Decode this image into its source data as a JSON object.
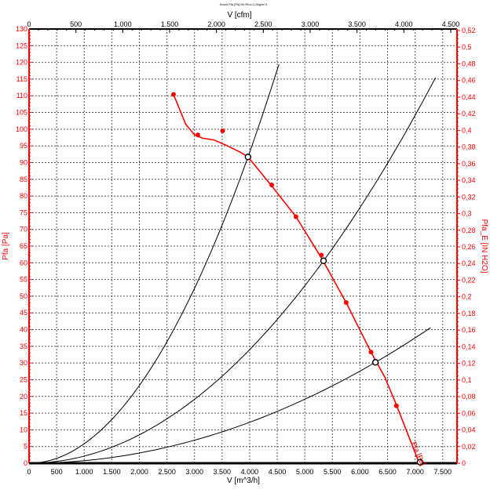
{
  "chart_data": {
    "type": "line",
    "title": "Druck Pfa [Pa] für Rho=1.2kg/m^3",
    "xlabel": "V [m^3/h]",
    "x2label": "V [cfm]",
    "ylabel": "Pfa [Pa]",
    "y2label": "Pfa_E [IN H2O]",
    "xlim": [
      0,
      7760
    ],
    "ylim": [
      0,
      130
    ],
    "grid": true,
    "x_ticks": [
      0,
      500,
      1000,
      1500,
      2000,
      2500,
      3000,
      3500,
      4000,
      4500,
      5000,
      5500,
      6000,
      6500,
      7000,
      7500
    ],
    "x_tick_labels": [
      "0",
      "500",
      "1.000",
      "1.500",
      "2.000",
      "2.500",
      "3.000",
      "3.500",
      "4.000",
      "4.500",
      "5.000",
      "5.500",
      "6.000",
      "6.500",
      "7.000",
      "7.500"
    ],
    "x2_ticks": [
      0,
      500,
      1000,
      1500,
      2000,
      2500,
      3000,
      3500,
      4000,
      4500
    ],
    "x2_tick_labels": [
      "0",
      "500",
      "1.000",
      "1.500",
      "2.000",
      "2.500",
      "3.000",
      "3.500",
      "4.000",
      "4.500"
    ],
    "y_ticks": [
      0,
      5,
      10,
      15,
      20,
      25,
      30,
      35,
      40,
      45,
      50,
      55,
      60,
      65,
      70,
      75,
      80,
      85,
      90,
      95,
      100,
      105,
      110,
      115,
      120,
      125,
      130
    ],
    "y2_ticks": [
      0,
      0.02,
      0.04,
      0.06,
      0.08,
      0.1,
      0.12,
      0.14,
      0.16,
      0.18,
      0.2,
      0.22,
      0.24,
      0.26,
      0.28,
      0.3,
      0.32,
      0.34,
      0.36,
      0.38,
      0.4,
      0.42,
      0.44,
      0.46,
      0.48,
      0.5,
      0.52
    ],
    "y2_tick_labels": [
      "0",
      "0,02",
      "0,04",
      "0,06",
      "0,08",
      "0,1",
      "0,12",
      "0,14",
      "0,16",
      "0,18",
      "0,2",
      "0,22",
      "0,24",
      "0,26",
      "0,28",
      "0,3",
      "0,32",
      "0,34",
      "0,36",
      "0,38",
      "0,4",
      "0,42",
      "0,44",
      "0,46",
      "0,48",
      "0,5",
      "0,52"
    ],
    "fan_curve": {
      "name": "Pfa [Pa]",
      "color": "#ff0000",
      "measured_points": [
        [
          2620,
          110.4
        ],
        [
          3060,
          98.3
        ],
        [
          3510,
          99.5
        ],
        [
          4400,
          83.3
        ],
        [
          4840,
          73.8
        ],
        [
          5300,
          62.3
        ],
        [
          5750,
          48.1
        ],
        [
          6200,
          33.3
        ],
        [
          6660,
          17.2
        ],
        [
          7070,
          0.2
        ]
      ],
      "smoothed": [
        [
          2620,
          110.4
        ],
        [
          2840,
          101.5
        ],
        [
          3000,
          98.3
        ],
        [
          3150,
          97.3
        ],
        [
          3350,
          96.8
        ],
        [
          3600,
          95.0
        ],
        [
          3820,
          93.2
        ],
        [
          3970,
          91.7
        ],
        [
          4400,
          83.0
        ],
        [
          4840,
          73.8
        ],
        [
          5300,
          61.5
        ],
        [
          5750,
          48.1
        ],
        [
          6200,
          33.3
        ],
        [
          6450,
          25.8
        ],
        [
          6660,
          17.5
        ],
        [
          7070,
          0.2
        ]
      ]
    },
    "system_curves": [
      {
        "k_point": [
          3970,
          91.7
        ],
        "x_max": 4530
      },
      {
        "k_point": [
          5340,
          60.6
        ],
        "x_max": 7370
      },
      {
        "k_point": [
          6280,
          30.2
        ],
        "x_max": 7280
      }
    ],
    "operating_points": [
      [
        3970,
        91.7
      ],
      [
        5340,
        60.6
      ],
      [
        6280,
        30.2
      ],
      [
        7090,
        0.3
      ]
    ]
  }
}
